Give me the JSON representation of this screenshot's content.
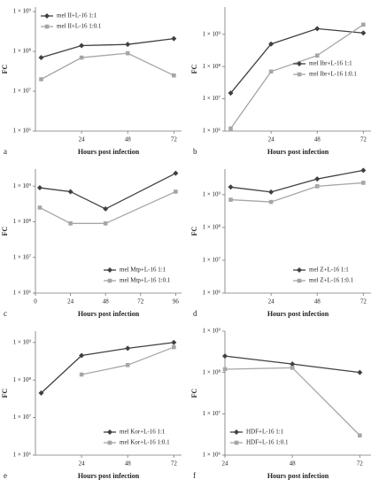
{
  "chart_data": [
    {
      "type": "line",
      "panel": "a",
      "x_label": "Hours post infection",
      "y_label": "FC",
      "log_y": true,
      "legend": "upper left",
      "x": [
        3,
        24,
        48,
        72
      ],
      "xlim": [
        0,
        76
      ],
      "xticks": [
        24,
        48,
        72
      ],
      "ylim": [
        1000000,
        1300000000
      ],
      "yticks": [
        {
          "value": 1000000,
          "label": "1 × 10⁶"
        },
        {
          "value": 10000000,
          "label": "1 × 10⁷"
        },
        {
          "value": 100000000,
          "label": "1 × 10⁸"
        },
        {
          "value": 1000000000,
          "label": "1 × 10⁹"
        }
      ],
      "series": [
        {
          "name": "mel II+L-16 1:1",
          "color": "#404040",
          "values": [
            70000000,
            140000000,
            150000000,
            210000000
          ]
        },
        {
          "name": "mel II+L-16 1:0.1",
          "color": "#a6a6a6",
          "values": [
            20000000,
            70000000,
            90000000,
            25000000
          ]
        }
      ]
    },
    {
      "type": "line",
      "panel": "b",
      "x_label": "Hours post infection",
      "y_label": "FC",
      "log_y": true,
      "legend": "center right",
      "x": [
        3,
        24,
        48,
        72
      ],
      "xlim": [
        0,
        76
      ],
      "xticks": [
        24,
        48,
        72
      ],
      "ylim": [
        1000000,
        7000000000
      ],
      "yticks": [
        {
          "value": 1000000,
          "label": "1 × 10⁶"
        },
        {
          "value": 10000000,
          "label": "1 × 10⁷"
        },
        {
          "value": 100000000,
          "label": "1 × 10⁸"
        },
        {
          "value": 1000000000,
          "label": "1 × 10⁹"
        }
      ],
      "series": [
        {
          "name": "mel Ibr+L-16 1:1",
          "color": "#404040",
          "values": [
            15000000,
            500000000,
            1500000000,
            1100000000
          ]
        },
        {
          "name": "mel Ibr+L-16 1:0.1",
          "color": "#a6a6a6",
          "values": [
            1200000,
            70000000,
            220000000,
            2000000000
          ]
        }
      ]
    },
    {
      "type": "line",
      "panel": "c",
      "x_label": "Hours post infection",
      "y_label": "FC",
      "log_y": true,
      "legend": "lower right",
      "x": [
        3,
        24,
        48,
        96
      ],
      "xlim": [
        0,
        100
      ],
      "xticks": [
        0,
        24,
        48,
        72,
        96
      ],
      "ylim": [
        1000000,
        3000000000
      ],
      "yticks": [
        {
          "value": 1000000,
          "label": "1 × 10⁶"
        },
        {
          "value": 10000000,
          "label": "1 × 10⁷"
        },
        {
          "value": 100000000,
          "label": "1 × 10⁸"
        },
        {
          "value": 1000000000,
          "label": "1 × 10⁹"
        }
      ],
      "series": [
        {
          "name": "mel Mtp+L-16 1:1",
          "color": "#404040",
          "values": [
            900000000,
            700000000,
            230000000,
            2300000000
          ]
        },
        {
          "name": "mel Mtp+L-16 1:0.1",
          "color": "#a6a6a6",
          "values": [
            250000000,
            90000000,
            90000000,
            700000000
          ]
        }
      ]
    },
    {
      "type": "line",
      "panel": "d",
      "x_label": "Hours post infection",
      "y_label": "FC",
      "log_y": true,
      "legend": "lower right",
      "x": [
        3,
        24,
        48,
        72
      ],
      "xlim": [
        0,
        76
      ],
      "xticks": [
        24,
        48,
        72
      ],
      "ylim": [
        1000000,
        6000000000
      ],
      "yticks": [
        {
          "value": 1000000,
          "label": "1 × 10⁶"
        },
        {
          "value": 10000000,
          "label": "1 × 10⁷"
        },
        {
          "value": 100000000,
          "label": "1 × 10⁸"
        },
        {
          "value": 1000000000,
          "label": "1 × 10⁹"
        }
      ],
      "series": [
        {
          "name": "mel Z+L-16 1:1",
          "color": "#404040",
          "values": [
            1700000000,
            1200000000,
            3000000000,
            5500000000
          ]
        },
        {
          "name": "mel Z+L-16 1:0.1",
          "color": "#a6a6a6",
          "values": [
            700000000,
            600000000,
            1800000000,
            2300000000
          ]
        }
      ]
    },
    {
      "type": "line",
      "panel": "e",
      "x_label": "Hours post infection",
      "y_label": "FC",
      "log_y": true,
      "legend": "lower right",
      "x": [
        3,
        24,
        48,
        72
      ],
      "xlim": [
        0,
        76
      ],
      "xticks": [
        24,
        48,
        72
      ],
      "ylim": [
        1000000,
        2000000000
      ],
      "yticks": [
        {
          "value": 1000000,
          "label": "1 × 10⁶"
        },
        {
          "value": 10000000,
          "label": "1 × 10⁷"
        },
        {
          "value": 100000000,
          "label": "1 × 10⁸"
        },
        {
          "value": 1000000000,
          "label": "1 × 10⁹"
        }
      ],
      "series": [
        {
          "name": "mel Kor+L-16 1:1",
          "color": "#404040",
          "values": [
            45000000,
            450000000,
            700000000,
            1000000000
          ]
        },
        {
          "name": "mel Kor+L-16 1:0.1",
          "color": "#a6a6a6",
          "values": [
            null,
            140000000,
            250000000,
            750000000
          ]
        }
      ]
    },
    {
      "type": "line",
      "panel": "f",
      "x_label": "Hours post infection",
      "y_label": "FC",
      "log_y": true,
      "legend": "lower left",
      "x": [
        24,
        48,
        72
      ],
      "xlim": [
        24,
        76
      ],
      "xticks": [
        24,
        48,
        72
      ],
      "ylim": [
        1000000,
        1000000000
      ],
      "yticks": [
        {
          "value": 1000000,
          "label": "1 × 10⁶"
        },
        {
          "value": 10000000,
          "label": "1 × 10⁷"
        },
        {
          "value": 100000000,
          "label": "1 × 10⁸"
        },
        {
          "value": 1000000000,
          "label": "1 × 10⁹"
        }
      ],
      "series": [
        {
          "name": "HDF+L-16 1:1",
          "color": "#404040",
          "values": [
            250000000,
            160000000,
            100000000
          ]
        },
        {
          "name": "HDF+L-16 1:0.1",
          "color": "#a6a6a6",
          "values": [
            120000000,
            130000000,
            3000000
          ]
        }
      ]
    }
  ]
}
